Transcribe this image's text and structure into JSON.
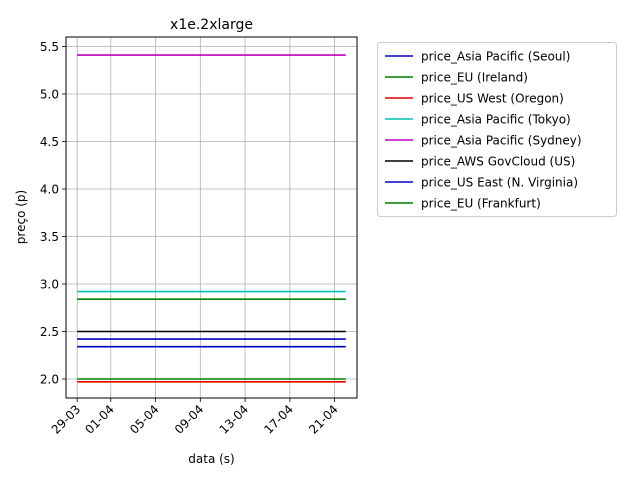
{
  "chart_data": {
    "type": "line",
    "title": "x1e.2xlarge",
    "xlabel": "data (s)",
    "ylabel": "preço (p)",
    "x_range_days": [
      -1.0,
      25.0
    ],
    "x_ticks": [
      {
        "day": 0,
        "label": "29-03"
      },
      {
        "day": 3,
        "label": "01-04"
      },
      {
        "day": 7,
        "label": "05-04"
      },
      {
        "day": 11,
        "label": "09-04"
      },
      {
        "day": 15,
        "label": "13-04"
      },
      {
        "day": 19,
        "label": "17-04"
      },
      {
        "day": 23,
        "label": "21-04"
      }
    ],
    "ylim": [
      1.8,
      5.6
    ],
    "y_ticks": [
      "2.0",
      "2.5",
      "3.0",
      "3.5",
      "4.0",
      "4.5",
      "5.0",
      "5.5"
    ],
    "x_start_day": 0.0,
    "x_end_day": 24.0,
    "grid": true,
    "legend_position": "outside-right",
    "series": [
      {
        "name": "price_Asia Pacific (Seoul)",
        "color": "#0000bf",
        "value": 2.42
      },
      {
        "name": "price_EU (Ireland)",
        "color": "#008000",
        "value": 2.0
      },
      {
        "name": "price_US West (Oregon)",
        "color": "#e00000",
        "value": 1.97
      },
      {
        "name": "price_Asia Pacific (Tokyo)",
        "color": "#00bfbf",
        "value": 2.92
      },
      {
        "name": "price_Asia Pacific (Sydney)",
        "color": "#bf00bf",
        "value": 5.41
      },
      {
        "name": "price_AWS GovCloud (US)",
        "color": "#000000",
        "value": 2.5
      },
      {
        "name": "price_US East (N. Virginia)",
        "color": "#0000bf",
        "value": 2.34
      },
      {
        "name": "price_EU (Frankfurt)",
        "color": "#008000",
        "value": 2.84
      }
    ]
  }
}
